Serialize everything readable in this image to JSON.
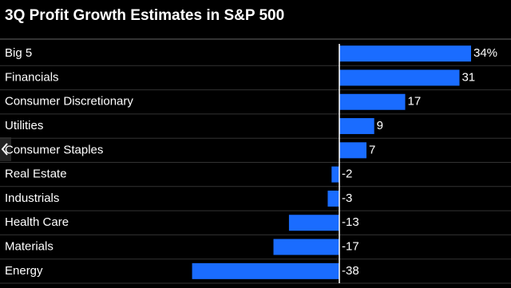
{
  "chart_data": {
    "type": "bar",
    "orientation": "horizontal",
    "title": "3Q Profit Growth Estimates in S&P 500",
    "categories": [
      "Big 5",
      "Financials",
      "Consumer Discretionary",
      "Utilities",
      "Consumer Staples",
      "Real Estate",
      "Industrials",
      "Health Care",
      "Materials",
      "Energy"
    ],
    "values": [
      34,
      31,
      17,
      9,
      7,
      -2,
      -3,
      -13,
      -17,
      -38
    ],
    "value_labels": [
      "34%",
      "31",
      "17",
      "9",
      "7",
      "-2",
      "-3",
      "-13",
      "-17",
      "-38"
    ],
    "color": "#1a6cff"
  }
}
